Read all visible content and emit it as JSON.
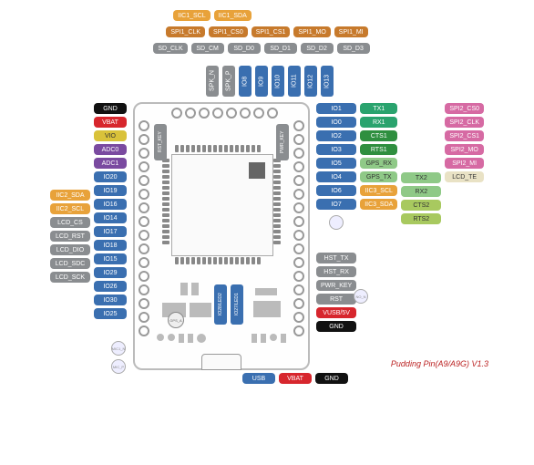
{
  "colors": {
    "orange": "#e8a23a",
    "brown": "#c77a2c",
    "gray": "#8a8d90",
    "blue": "#3a6fb0",
    "black": "#111111",
    "red": "#d7262d",
    "yellow": "#d9c23a",
    "purple": "#7a4aa0",
    "teal": "#2aa36e",
    "green": "#2f8f3f",
    "ltgreen": "#8fc987",
    "pink": "#d66aa3",
    "lime": "#a8c95f",
    "cream": "#e9e2c5"
  },
  "top": {
    "r1": [
      {
        "t": "IIC1_SCL",
        "c": "orange"
      },
      {
        "t": "IIC1_SDA",
        "c": "orange"
      }
    ],
    "r2": [
      {
        "t": "SPI1_CLK",
        "c": "brown"
      },
      {
        "t": "SPI1_CS0",
        "c": "brown"
      },
      {
        "t": "SPI1_CS1",
        "c": "brown"
      },
      {
        "t": "SPI1_MO",
        "c": "brown"
      },
      {
        "t": "SPI1_MI",
        "c": "brown"
      }
    ],
    "r3": [
      {
        "t": "SD_CLK",
        "c": "gray"
      },
      {
        "t": "SD_CM",
        "c": "gray"
      },
      {
        "t": "SD_D0",
        "c": "gray"
      },
      {
        "t": "SD_D1",
        "c": "gray"
      },
      {
        "t": "SD_D2",
        "c": "gray"
      },
      {
        "t": "SD_D3",
        "c": "gray"
      }
    ],
    "vpins": [
      {
        "t": "SPK_N",
        "c": "gray"
      },
      {
        "t": "SPK_P",
        "c": "gray"
      },
      {
        "t": "IO8",
        "c": "blue"
      },
      {
        "t": "IO9",
        "c": "blue"
      },
      {
        "t": "IO10",
        "c": "blue"
      },
      {
        "t": "IO11",
        "c": "blue"
      },
      {
        "t": "IO12",
        "c": "blue"
      },
      {
        "t": "IO13",
        "c": "blue"
      }
    ]
  },
  "left": {
    "inner": [
      {
        "t": "GND",
        "c": "black"
      },
      {
        "t": "VBAT",
        "c": "red"
      },
      {
        "t": "VIO",
        "c": "yellow"
      },
      {
        "t": "ADC0",
        "c": "purple"
      },
      {
        "t": "ADC1",
        "c": "purple"
      },
      {
        "t": "IO20",
        "c": "blue"
      },
      {
        "t": "IO19",
        "c": "blue"
      },
      {
        "t": "IO16",
        "c": "blue"
      },
      {
        "t": "IO14",
        "c": "blue"
      },
      {
        "t": "IO17",
        "c": "blue"
      },
      {
        "t": "IO18",
        "c": "blue"
      },
      {
        "t": "IO15",
        "c": "blue"
      },
      {
        "t": "IO29",
        "c": "blue"
      },
      {
        "t": "IO26",
        "c": "blue"
      },
      {
        "t": "IO30",
        "c": "blue"
      },
      {
        "t": "IO25",
        "c": "blue"
      }
    ],
    "outer": [
      null,
      null,
      null,
      null,
      null,
      {
        "t": "IIC2_SDA",
        "c": "orange"
      },
      {
        "t": "IIC2_SCL",
        "c": "orange"
      },
      {
        "t": "LCD_CS",
        "c": "gray"
      },
      {
        "t": "LCD_RST",
        "c": "gray"
      },
      {
        "t": "LCD_DIO",
        "c": "gray"
      },
      {
        "t": "LCD_SDC",
        "c": "gray"
      },
      {
        "t": "LCD_SCK",
        "c": "gray"
      }
    ]
  },
  "right": {
    "col1": [
      {
        "t": "IO1",
        "c": "blue"
      },
      {
        "t": "IO0",
        "c": "blue"
      },
      {
        "t": "IO2",
        "c": "blue"
      },
      {
        "t": "IO3",
        "c": "blue"
      },
      {
        "t": "IO5",
        "c": "blue"
      },
      {
        "t": "IO4",
        "c": "blue"
      },
      {
        "t": "IO6",
        "c": "blue"
      },
      {
        "t": "IO7",
        "c": "blue"
      }
    ],
    "col2": [
      {
        "t": "TX1",
        "c": "teal"
      },
      {
        "t": "RX1",
        "c": "teal"
      },
      {
        "t": "CTS1",
        "c": "green"
      },
      {
        "t": "RTS1",
        "c": "green"
      },
      {
        "t": "GPS_RX",
        "c": "ltgreen"
      },
      {
        "t": "GPS_TX",
        "c": "ltgreen"
      },
      {
        "t": "IIC3_SCL",
        "c": "orange"
      },
      {
        "t": "IIC3_SDA",
        "c": "orange"
      }
    ],
    "col3": [
      null,
      null,
      null,
      null,
      {
        "t": "TX2",
        "c": "ltgreen"
      },
      {
        "t": "RX2",
        "c": "ltgreen"
      },
      {
        "t": "CTS2",
        "c": "lime"
      },
      {
        "t": "RTS2",
        "c": "lime"
      }
    ],
    "col4": [
      {
        "t": "SPI2_CS0",
        "c": "pink"
      },
      {
        "t": "SPI2_CLK",
        "c": "pink"
      },
      {
        "t": "SPI2_CS1",
        "c": "pink"
      },
      {
        "t": "SPI2_MO",
        "c": "pink"
      },
      {
        "t": "SPI2_MI",
        "c": "pink"
      },
      {
        "t": "LCD_TE",
        "c": "cream"
      }
    ],
    "col1b": [
      null,
      {
        "t": "HST_TX",
        "c": "gray"
      },
      {
        "t": "HST_RX",
        "c": "gray"
      },
      {
        "t": "PWR_KEY",
        "c": "gray"
      },
      {
        "t": "RST",
        "c": "gray"
      },
      {
        "t": "VUSB/5V",
        "c": "red"
      },
      {
        "t": "GND",
        "c": "black"
      }
    ]
  },
  "bottom": {
    "under_board": [
      {
        "t": "USB",
        "c": "blue"
      },
      {
        "t": "VBAT",
        "c": "red"
      },
      {
        "t": "GND",
        "c": "black"
      }
    ],
    "board_vpins": [
      {
        "t": "RST_KEY",
        "c": "gray"
      },
      {
        "t": "PWR_KEY",
        "c": "gray"
      },
      {
        "t": "IO28/LED2",
        "c": "blue"
      },
      {
        "t": "IO27/LED1",
        "c": "blue"
      }
    ]
  },
  "caption": "Pudding Pin(A9/A9G) V1.3",
  "circle_labels": {
    "gps": "GPS_A",
    "mic": "MIC1_N",
    "mic2": "MIC_P",
    "no": "NO_N"
  }
}
